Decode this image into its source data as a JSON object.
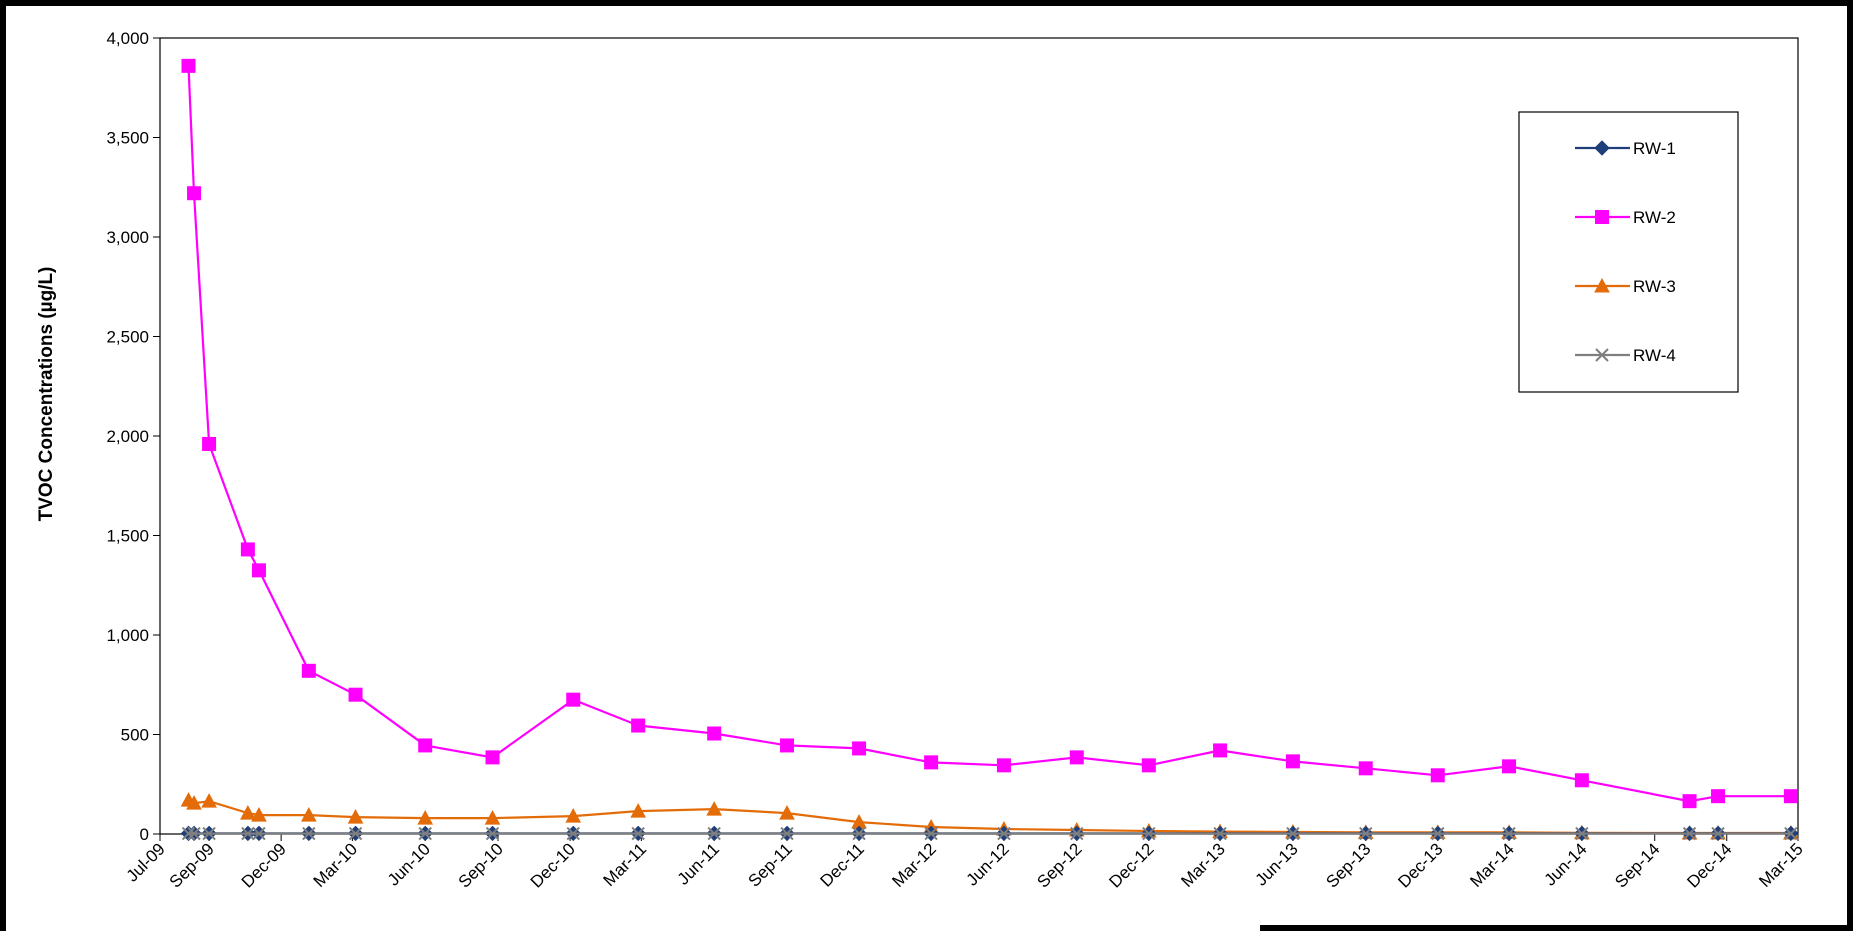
{
  "chart_data": {
    "type": "line",
    "title": "",
    "xlabel": "",
    "ylabel": "TVOC Concentrations (µg/L)",
    "ylim": [
      0,
      4000
    ],
    "yticks": [
      0,
      500,
      1000,
      1500,
      2000,
      2500,
      3000,
      3500,
      4000
    ],
    "ytick_labels": [
      "0",
      "500",
      "1,000",
      "1,500",
      "2,000",
      "2,500",
      "3,000",
      "3,500",
      "4,000"
    ],
    "xlim": [
      "2009-07-01",
      "2015-03-01"
    ],
    "xtick_labels": [
      "Jul-09",
      "Sep-09",
      "Dec-09",
      "Mar-10",
      "Jun-10",
      "Sep-10",
      "Dec-10",
      "Mar-11",
      "Jun-11",
      "Sep-11",
      "Dec-11",
      "Mar-12",
      "Jun-12",
      "Sep-12",
      "Dec-12",
      "Mar-13",
      "Jun-13",
      "Sep-13",
      "Dec-13",
      "Mar-14",
      "Jun-14",
      "Sep-14",
      "Dec-14",
      "Mar-15"
    ],
    "xtick_dates": [
      "2009-07-01",
      "2009-09-01",
      "2009-12-01",
      "2010-03-01",
      "2010-06-01",
      "2010-09-01",
      "2010-12-01",
      "2011-03-01",
      "2011-06-01",
      "2011-09-01",
      "2011-12-01",
      "2012-03-01",
      "2012-06-01",
      "2012-09-01",
      "2012-12-01",
      "2013-03-01",
      "2013-06-01",
      "2013-09-01",
      "2013-12-01",
      "2014-03-01",
      "2014-06-01",
      "2014-09-01",
      "2014-12-01",
      "2015-03-01"
    ],
    "grid": false,
    "legend_position": "top-right",
    "series": [
      {
        "name": "RW-1",
        "color": "#1f3f7a",
        "marker": "diamond",
        "x": [
          "2009-08-06",
          "2009-08-13",
          "2009-09-01",
          "2009-10-20",
          "2009-11-03",
          "2010-01-05",
          "2010-03-05",
          "2010-06-01",
          "2010-08-25",
          "2010-12-05",
          "2011-02-25",
          "2011-06-01",
          "2011-09-01",
          "2011-12-01",
          "2012-03-01",
          "2012-06-01",
          "2012-09-01",
          "2012-12-01",
          "2013-03-01",
          "2013-06-01",
          "2013-09-01",
          "2013-12-01",
          "2014-03-01",
          "2014-06-01",
          "2014-10-15",
          "2014-11-20",
          "2015-02-20"
        ],
        "y": [
          3,
          3,
          3,
          3,
          3,
          3,
          3,
          3,
          3,
          3,
          3,
          3,
          3,
          3,
          3,
          3,
          3,
          3,
          3,
          3,
          3,
          3,
          3,
          3,
          3,
          3,
          3
        ]
      },
      {
        "name": "RW-2",
        "color": "#ff00ff",
        "marker": "square",
        "x": [
          "2009-08-06",
          "2009-08-13",
          "2009-09-01",
          "2009-10-20",
          "2009-11-03",
          "2010-01-05",
          "2010-03-05",
          "2010-06-01",
          "2010-08-25",
          "2010-12-05",
          "2011-02-25",
          "2011-06-01",
          "2011-09-01",
          "2011-12-01",
          "2012-03-01",
          "2012-06-01",
          "2012-09-01",
          "2012-12-01",
          "2013-03-01",
          "2013-06-01",
          "2013-09-01",
          "2013-12-01",
          "2014-03-01",
          "2014-06-01",
          "2014-10-15",
          "2014-11-20",
          "2015-02-20"
        ],
        "y": [
          3860,
          3220,
          1960,
          1430,
          1325,
          820,
          700,
          445,
          385,
          675,
          545,
          505,
          445,
          430,
          360,
          345,
          385,
          345,
          420,
          365,
          330,
          295,
          340,
          270,
          165,
          190,
          190
        ]
      },
      {
        "name": "RW-3",
        "color": "#e36c09",
        "marker": "triangle",
        "x": [
          "2009-08-06",
          "2009-08-13",
          "2009-09-01",
          "2009-10-20",
          "2009-11-03",
          "2010-01-05",
          "2010-03-05",
          "2010-06-01",
          "2010-08-25",
          "2010-12-05",
          "2011-02-25",
          "2011-06-01",
          "2011-09-01",
          "2011-12-01",
          "2012-03-01",
          "2012-06-01",
          "2012-09-01",
          "2012-12-01",
          "2013-03-01",
          "2013-06-01",
          "2013-09-01",
          "2013-12-01",
          "2014-03-01",
          "2014-06-01",
          "2014-10-15",
          "2014-11-20",
          "2015-02-20"
        ],
        "y": [
          170,
          155,
          165,
          105,
          95,
          95,
          85,
          80,
          80,
          90,
          115,
          125,
          105,
          60,
          35,
          25,
          20,
          15,
          12,
          10,
          8,
          8,
          8,
          6,
          5,
          5,
          5
        ]
      },
      {
        "name": "RW-4",
        "color": "#7f7f7f",
        "marker": "x",
        "x": [
          "2009-08-06",
          "2009-08-13",
          "2009-09-01",
          "2009-10-20",
          "2009-11-03",
          "2010-01-05",
          "2010-03-05",
          "2010-06-01",
          "2010-08-25",
          "2010-12-05",
          "2011-02-25",
          "2011-06-01",
          "2011-09-01",
          "2011-12-01",
          "2012-03-01",
          "2012-06-01",
          "2012-09-01",
          "2012-12-01",
          "2013-03-01",
          "2013-06-01",
          "2013-09-01",
          "2013-12-01",
          "2014-03-01",
          "2014-06-01",
          "2014-10-15",
          "2014-11-20",
          "2015-02-20"
        ],
        "y": [
          2,
          2,
          2,
          2,
          2,
          2,
          2,
          2,
          2,
          2,
          2,
          2,
          2,
          2,
          2,
          2,
          2,
          2,
          2,
          2,
          2,
          2,
          2,
          2,
          2,
          2,
          2
        ]
      }
    ]
  }
}
